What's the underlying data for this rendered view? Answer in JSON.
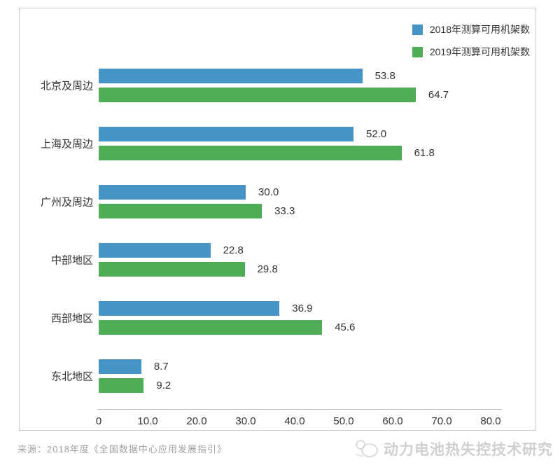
{
  "legend": [
    {
      "label": "2018年测算可用机架数",
      "color": "#4795C6"
    },
    {
      "label": "2019年测算可用机架数",
      "color": "#4FAD55"
    }
  ],
  "chart_data": {
    "type": "bar",
    "orientation": "horizontal",
    "title": "",
    "xlabel": "",
    "ylabel": "",
    "categories": [
      "北京及周边",
      "上海及周边",
      "广州及周边",
      "中部地区",
      "西部地区",
      "东北地区"
    ],
    "series": [
      {
        "name": "2018年测算可用机架数",
        "color": "#4795C6",
        "values": [
          53.8,
          52.0,
          30.0,
          22.8,
          36.9,
          8.7
        ]
      },
      {
        "name": "2019年测算可用机架数",
        "color": "#4FAD55",
        "values": [
          64.7,
          61.8,
          33.3,
          29.8,
          45.6,
          9.2
        ]
      }
    ],
    "xlim": [
      0,
      80
    ],
    "xticklabels": [
      "0",
      "10.0",
      "20.0",
      "30.0",
      "40.0",
      "50.0",
      "60.0",
      "70.0",
      "80.0"
    ],
    "value_labels": "one_decimal",
    "legend_position": "top-right",
    "grid": false
  },
  "source_note": "来源：2018年度《全国数据中心应用发展指引》",
  "watermark": {
    "text": "动力电池热失控技术研究",
    "logo": "swirl-logo-icon"
  }
}
